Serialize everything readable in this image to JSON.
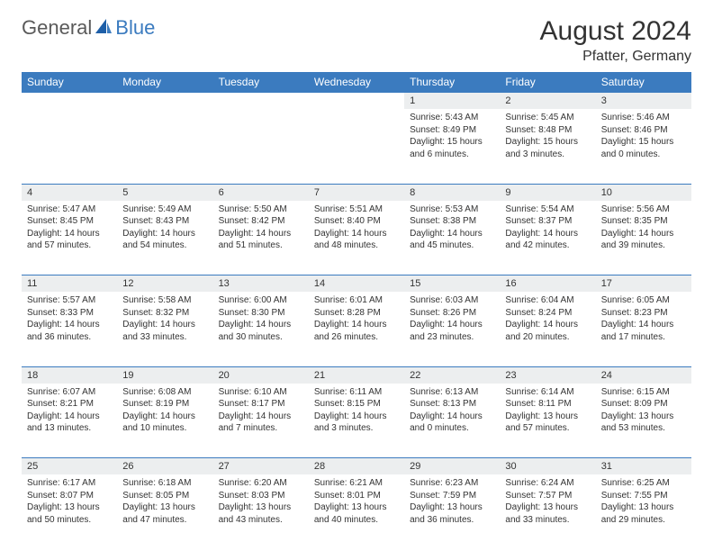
{
  "brand": {
    "part1": "General",
    "part2": "Blue"
  },
  "title": "August 2024",
  "location": "Pfatter, Germany",
  "colors": {
    "header_bg": "#3b7bbf",
    "header_text": "#ffffff",
    "daynum_bg": "#eceeef",
    "border": "#3b7bbf",
    "body_text": "#333333",
    "page_bg": "#ffffff"
  },
  "typography": {
    "title_fontsize": 30,
    "location_fontsize": 16,
    "dayhead_fontsize": 12,
    "daynum_fontsize": 11,
    "cell_fontsize": 10
  },
  "day_headers": [
    "Sunday",
    "Monday",
    "Tuesday",
    "Wednesday",
    "Thursday",
    "Friday",
    "Saturday"
  ],
  "weeks": [
    {
      "nums": [
        "",
        "",
        "",
        "",
        "1",
        "2",
        "3"
      ],
      "cells": [
        null,
        null,
        null,
        null,
        {
          "sunrise": "Sunrise: 5:43 AM",
          "sunset": "Sunset: 8:49 PM",
          "daylight1": "Daylight: 15 hours",
          "daylight2": "and 6 minutes."
        },
        {
          "sunrise": "Sunrise: 5:45 AM",
          "sunset": "Sunset: 8:48 PM",
          "daylight1": "Daylight: 15 hours",
          "daylight2": "and 3 minutes."
        },
        {
          "sunrise": "Sunrise: 5:46 AM",
          "sunset": "Sunset: 8:46 PM",
          "daylight1": "Daylight: 15 hours",
          "daylight2": "and 0 minutes."
        }
      ]
    },
    {
      "nums": [
        "4",
        "5",
        "6",
        "7",
        "8",
        "9",
        "10"
      ],
      "cells": [
        {
          "sunrise": "Sunrise: 5:47 AM",
          "sunset": "Sunset: 8:45 PM",
          "daylight1": "Daylight: 14 hours",
          "daylight2": "and 57 minutes."
        },
        {
          "sunrise": "Sunrise: 5:49 AM",
          "sunset": "Sunset: 8:43 PM",
          "daylight1": "Daylight: 14 hours",
          "daylight2": "and 54 minutes."
        },
        {
          "sunrise": "Sunrise: 5:50 AM",
          "sunset": "Sunset: 8:42 PM",
          "daylight1": "Daylight: 14 hours",
          "daylight2": "and 51 minutes."
        },
        {
          "sunrise": "Sunrise: 5:51 AM",
          "sunset": "Sunset: 8:40 PM",
          "daylight1": "Daylight: 14 hours",
          "daylight2": "and 48 minutes."
        },
        {
          "sunrise": "Sunrise: 5:53 AM",
          "sunset": "Sunset: 8:38 PM",
          "daylight1": "Daylight: 14 hours",
          "daylight2": "and 45 minutes."
        },
        {
          "sunrise": "Sunrise: 5:54 AM",
          "sunset": "Sunset: 8:37 PM",
          "daylight1": "Daylight: 14 hours",
          "daylight2": "and 42 minutes."
        },
        {
          "sunrise": "Sunrise: 5:56 AM",
          "sunset": "Sunset: 8:35 PM",
          "daylight1": "Daylight: 14 hours",
          "daylight2": "and 39 minutes."
        }
      ]
    },
    {
      "nums": [
        "11",
        "12",
        "13",
        "14",
        "15",
        "16",
        "17"
      ],
      "cells": [
        {
          "sunrise": "Sunrise: 5:57 AM",
          "sunset": "Sunset: 8:33 PM",
          "daylight1": "Daylight: 14 hours",
          "daylight2": "and 36 minutes."
        },
        {
          "sunrise": "Sunrise: 5:58 AM",
          "sunset": "Sunset: 8:32 PM",
          "daylight1": "Daylight: 14 hours",
          "daylight2": "and 33 minutes."
        },
        {
          "sunrise": "Sunrise: 6:00 AM",
          "sunset": "Sunset: 8:30 PM",
          "daylight1": "Daylight: 14 hours",
          "daylight2": "and 30 minutes."
        },
        {
          "sunrise": "Sunrise: 6:01 AM",
          "sunset": "Sunset: 8:28 PM",
          "daylight1": "Daylight: 14 hours",
          "daylight2": "and 26 minutes."
        },
        {
          "sunrise": "Sunrise: 6:03 AM",
          "sunset": "Sunset: 8:26 PM",
          "daylight1": "Daylight: 14 hours",
          "daylight2": "and 23 minutes."
        },
        {
          "sunrise": "Sunrise: 6:04 AM",
          "sunset": "Sunset: 8:24 PM",
          "daylight1": "Daylight: 14 hours",
          "daylight2": "and 20 minutes."
        },
        {
          "sunrise": "Sunrise: 6:05 AM",
          "sunset": "Sunset: 8:23 PM",
          "daylight1": "Daylight: 14 hours",
          "daylight2": "and 17 minutes."
        }
      ]
    },
    {
      "nums": [
        "18",
        "19",
        "20",
        "21",
        "22",
        "23",
        "24"
      ],
      "cells": [
        {
          "sunrise": "Sunrise: 6:07 AM",
          "sunset": "Sunset: 8:21 PM",
          "daylight1": "Daylight: 14 hours",
          "daylight2": "and 13 minutes."
        },
        {
          "sunrise": "Sunrise: 6:08 AM",
          "sunset": "Sunset: 8:19 PM",
          "daylight1": "Daylight: 14 hours",
          "daylight2": "and 10 minutes."
        },
        {
          "sunrise": "Sunrise: 6:10 AM",
          "sunset": "Sunset: 8:17 PM",
          "daylight1": "Daylight: 14 hours",
          "daylight2": "and 7 minutes."
        },
        {
          "sunrise": "Sunrise: 6:11 AM",
          "sunset": "Sunset: 8:15 PM",
          "daylight1": "Daylight: 14 hours",
          "daylight2": "and 3 minutes."
        },
        {
          "sunrise": "Sunrise: 6:13 AM",
          "sunset": "Sunset: 8:13 PM",
          "daylight1": "Daylight: 14 hours",
          "daylight2": "and 0 minutes."
        },
        {
          "sunrise": "Sunrise: 6:14 AM",
          "sunset": "Sunset: 8:11 PM",
          "daylight1": "Daylight: 13 hours",
          "daylight2": "and 57 minutes."
        },
        {
          "sunrise": "Sunrise: 6:15 AM",
          "sunset": "Sunset: 8:09 PM",
          "daylight1": "Daylight: 13 hours",
          "daylight2": "and 53 minutes."
        }
      ]
    },
    {
      "nums": [
        "25",
        "26",
        "27",
        "28",
        "29",
        "30",
        "31"
      ],
      "cells": [
        {
          "sunrise": "Sunrise: 6:17 AM",
          "sunset": "Sunset: 8:07 PM",
          "daylight1": "Daylight: 13 hours",
          "daylight2": "and 50 minutes."
        },
        {
          "sunrise": "Sunrise: 6:18 AM",
          "sunset": "Sunset: 8:05 PM",
          "daylight1": "Daylight: 13 hours",
          "daylight2": "and 47 minutes."
        },
        {
          "sunrise": "Sunrise: 6:20 AM",
          "sunset": "Sunset: 8:03 PM",
          "daylight1": "Daylight: 13 hours",
          "daylight2": "and 43 minutes."
        },
        {
          "sunrise": "Sunrise: 6:21 AM",
          "sunset": "Sunset: 8:01 PM",
          "daylight1": "Daylight: 13 hours",
          "daylight2": "and 40 minutes."
        },
        {
          "sunrise": "Sunrise: 6:23 AM",
          "sunset": "Sunset: 7:59 PM",
          "daylight1": "Daylight: 13 hours",
          "daylight2": "and 36 minutes."
        },
        {
          "sunrise": "Sunrise: 6:24 AM",
          "sunset": "Sunset: 7:57 PM",
          "daylight1": "Daylight: 13 hours",
          "daylight2": "and 33 minutes."
        },
        {
          "sunrise": "Sunrise: 6:25 AM",
          "sunset": "Sunset: 7:55 PM",
          "daylight1": "Daylight: 13 hours",
          "daylight2": "and 29 minutes."
        }
      ]
    }
  ]
}
